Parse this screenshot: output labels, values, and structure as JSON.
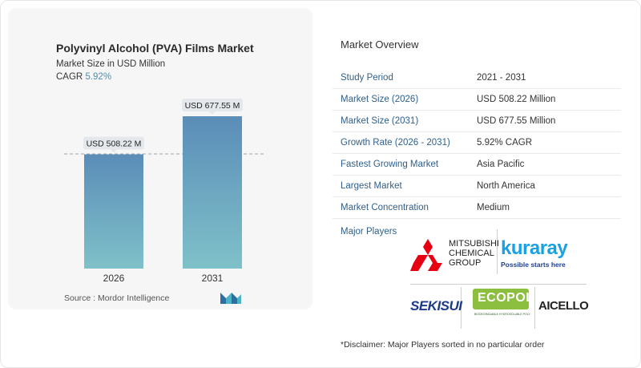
{
  "chart_data": {
    "type": "bar",
    "title": "Polyvinyl Alcohol (PVA) Films Market",
    "subtitle": "Market Size in USD Million",
    "cagr_label": "CAGR",
    "cagr_value": "5.92%",
    "categories": [
      "2026",
      "2031"
    ],
    "values": [
      508.22,
      677.55
    ],
    "data_labels": [
      "USD 508.22 M",
      "USD 677.55 M"
    ],
    "colors": {
      "bar_top": "#5b8db8",
      "bar_bottom": "#7fc1c9"
    }
  },
  "source": "Source :  Mordor Intelligence",
  "overview": {
    "title": "Market Overview",
    "rows": [
      {
        "key": "Study Period",
        "value": "2021 - 2031"
      },
      {
        "key": "Market Size (2026)",
        "value": "USD 508.22 Million"
      },
      {
        "key": "Market Size (2031)",
        "value": "USD 677.55 Million"
      },
      {
        "key": "Growth Rate (2026 - 2031)",
        "value": "5.92% CAGR"
      },
      {
        "key": "Fastest Growing Market",
        "value": "Asia Pacific"
      },
      {
        "key": "Largest Market",
        "value": "North America"
      },
      {
        "key": "Market Concentration",
        "value": "Medium"
      }
    ],
    "players_title": "Major Players"
  },
  "logos": {
    "mitsubishi": [
      "MITSUBISHI",
      "CHEMICAL",
      "GROUP"
    ],
    "kuraray": "kuraray",
    "kuraray_tagline": "Possible starts here",
    "sekisui": "SEKISUI",
    "ecopol": "ECOPOL",
    "ecopol_tagline": "BIODEGRADABLE HYDROSOLUBLE POLYMERS",
    "aicello": "AICELLO"
  },
  "disclaimer": "*Disclaimer: Major Players sorted in no particular order"
}
